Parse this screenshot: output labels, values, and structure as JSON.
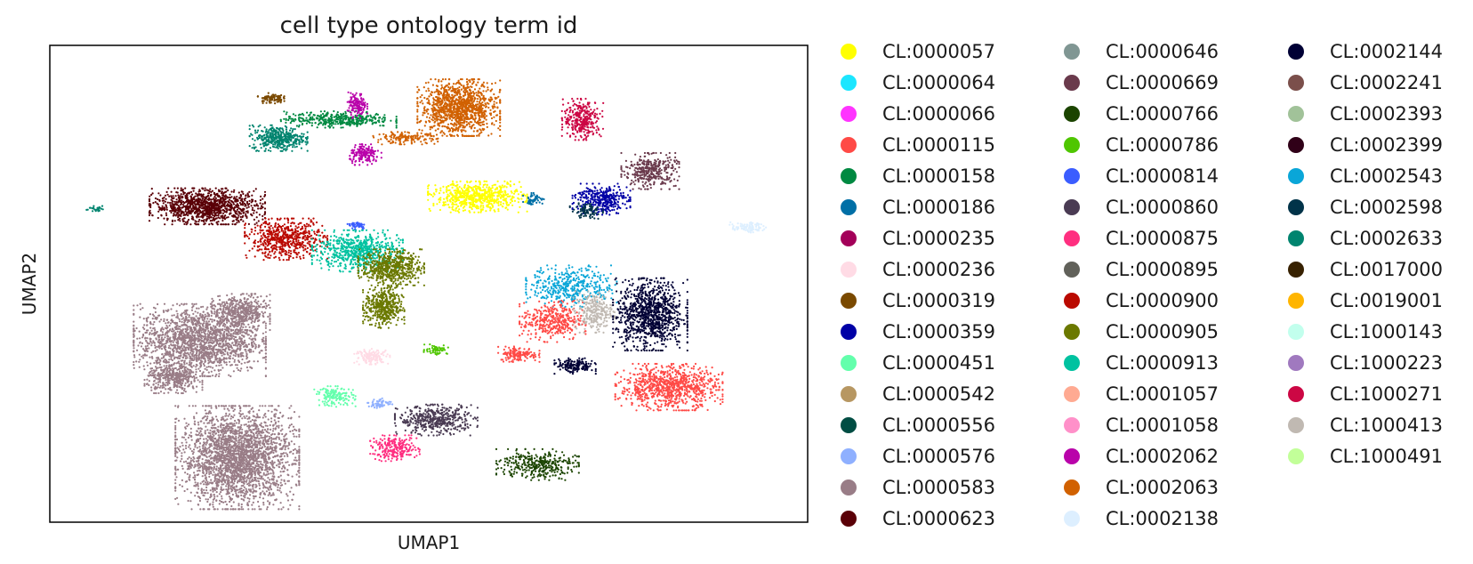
{
  "chart_data": {
    "type": "scatter",
    "title": "cell type ontology term id",
    "xlabel": "UMAP1",
    "ylabel": "UMAP2",
    "xlim": [
      0,
      100
    ],
    "ylim": [
      0,
      100
    ],
    "grid": false,
    "ticks": false,
    "legend_position": "right",
    "legend_columns": 3,
    "categories": [
      {
        "id": "CL:0000057",
        "color": "#ffff00"
      },
      {
        "id": "CL:0000064",
        "color": "#1ce6ff"
      },
      {
        "id": "CL:0000066",
        "color": "#ff34ff"
      },
      {
        "id": "CL:0000115",
        "color": "#ff4a46"
      },
      {
        "id": "CL:0000158",
        "color": "#008941"
      },
      {
        "id": "CL:0000186",
        "color": "#006fa6"
      },
      {
        "id": "CL:0000235",
        "color": "#a30059"
      },
      {
        "id": "CL:0000236",
        "color": "#ffdbe5"
      },
      {
        "id": "CL:0000319",
        "color": "#7a4900"
      },
      {
        "id": "CL:0000359",
        "color": "#0000a6"
      },
      {
        "id": "CL:0000451",
        "color": "#63ffac"
      },
      {
        "id": "CL:0000542",
        "color": "#b79762"
      },
      {
        "id": "CL:0000556",
        "color": "#004d43"
      },
      {
        "id": "CL:0000576",
        "color": "#8fb0ff"
      },
      {
        "id": "CL:0000583",
        "color": "#997d87"
      },
      {
        "id": "CL:0000623",
        "color": "#5a0007"
      },
      {
        "id": "CL:0000646",
        "color": "#809693"
      },
      {
        "id": "CL:0000669",
        "color": "#6a3a4c"
      },
      {
        "id": "CL:0000766",
        "color": "#1b4400"
      },
      {
        "id": "CL:0000786",
        "color": "#4fc601"
      },
      {
        "id": "CL:0000814",
        "color": "#3b5dff"
      },
      {
        "id": "CL:0000860",
        "color": "#4a3b53"
      },
      {
        "id": "CL:0000875",
        "color": "#ff2f80"
      },
      {
        "id": "CL:0000895",
        "color": "#61615a"
      },
      {
        "id": "CL:0000900",
        "color": "#ba0900"
      },
      {
        "id": "CL:0000905",
        "color": "#6b7900"
      },
      {
        "id": "CL:0000913",
        "color": "#00c2a0"
      },
      {
        "id": "CL:0001057",
        "color": "#ffaa92"
      },
      {
        "id": "CL:0001058",
        "color": "#ff90c9"
      },
      {
        "id": "CL:0002062",
        "color": "#b903aa"
      },
      {
        "id": "CL:0002063",
        "color": "#d16100"
      },
      {
        "id": "CL:0002138",
        "color": "#ddefff"
      },
      {
        "id": "CL:0002144",
        "color": "#000035"
      },
      {
        "id": "CL:0002241",
        "color": "#7b4f4b"
      },
      {
        "id": "CL:0002393",
        "color": "#a1c299"
      },
      {
        "id": "CL:0002399",
        "color": "#300018"
      },
      {
        "id": "CL:0002543",
        "color": "#0aa6d8"
      },
      {
        "id": "CL:0002598",
        "color": "#013349"
      },
      {
        "id": "CL:0002633",
        "color": "#00846f"
      },
      {
        "id": "CL:0017000",
        "color": "#372101"
      },
      {
        "id": "CL:0019001",
        "color": "#ffb500"
      },
      {
        "id": "CL:1000143",
        "color": "#c2ffed"
      },
      {
        "id": "CL:1000223",
        "color": "#a079bf"
      },
      {
        "id": "CL:1000271",
        "color": "#cc0744"
      },
      {
        "id": "CL:1000413",
        "color": "#c0b9b2"
      },
      {
        "id": "CL:1000491",
        "color": "#c2ff99"
      }
    ],
    "clusters": [
      {
        "category": "CL:0000583",
        "x": 24.5,
        "y": 13,
        "rx": 7.5,
        "ry": 10,
        "n": 2600
      },
      {
        "category": "CL:0000583",
        "x": 19.5,
        "y": 38,
        "rx": 8,
        "ry": 7,
        "n": 1800
      },
      {
        "category": "CL:0000583",
        "x": 16,
        "y": 30,
        "rx": 3.5,
        "ry": 3,
        "n": 400
      },
      {
        "category": "CL:0000583",
        "x": 25,
        "y": 44,
        "rx": 3.5,
        "ry": 3.5,
        "n": 450
      },
      {
        "category": "CL:0000623",
        "x": 20.5,
        "y": 66.5,
        "rx": 7,
        "ry": 3.5,
        "n": 1100
      },
      {
        "category": "CL:0000900",
        "x": 31,
        "y": 59.5,
        "rx": 5,
        "ry": 4,
        "n": 600
      },
      {
        "category": "CL:0000913",
        "x": 40.5,
        "y": 57,
        "rx": 5.5,
        "ry": 4,
        "n": 650
      },
      {
        "category": "CL:0000905",
        "x": 45,
        "y": 53.5,
        "rx": 4,
        "ry": 3.5,
        "n": 600
      },
      {
        "category": "CL:0000905",
        "x": 44,
        "y": 45,
        "rx": 2.5,
        "ry": 4,
        "n": 450
      },
      {
        "category": "CL:0000814",
        "x": 40.5,
        "y": 62.5,
        "rx": 1.2,
        "ry": 0.8,
        "n": 50
      },
      {
        "category": "CL:0002633",
        "x": 30,
        "y": 81,
        "rx": 3.5,
        "ry": 2.5,
        "n": 400
      },
      {
        "category": "CL:0000158",
        "x": 38,
        "y": 85,
        "rx": 7,
        "ry": 1.6,
        "n": 400
      },
      {
        "category": "CL:0000319",
        "x": 29,
        "y": 89.5,
        "rx": 1.6,
        "ry": 1,
        "n": 90
      },
      {
        "category": "CL:0002062",
        "x": 40.5,
        "y": 88,
        "rx": 1.2,
        "ry": 2.5,
        "n": 140
      },
      {
        "category": "CL:0002062",
        "x": 41.5,
        "y": 77.5,
        "rx": 2,
        "ry": 2,
        "n": 170
      },
      {
        "category": "CL:0002063",
        "x": 54,
        "y": 87.5,
        "rx": 5,
        "ry": 5.5,
        "n": 1200
      },
      {
        "category": "CL:0002063",
        "x": 47,
        "y": 81,
        "rx": 4,
        "ry": 1.2,
        "n": 150
      },
      {
        "category": "CL:1000271",
        "x": 70.5,
        "y": 85,
        "rx": 2.5,
        "ry": 4,
        "n": 320
      },
      {
        "category": "CL:0000057",
        "x": 56.5,
        "y": 68.5,
        "rx": 6,
        "ry": 3,
        "n": 650
      },
      {
        "category": "CL:0000186",
        "x": 64,
        "y": 68,
        "rx": 1.3,
        "ry": 1.2,
        "n": 50
      },
      {
        "category": "CL:0000359",
        "x": 73,
        "y": 68,
        "rx": 3.5,
        "ry": 3,
        "n": 350
      },
      {
        "category": "CL:0000669",
        "x": 79.5,
        "y": 74,
        "rx": 3.5,
        "ry": 3.5,
        "n": 350
      },
      {
        "category": "CL:0002598",
        "x": 71,
        "y": 65.5,
        "rx": 2,
        "ry": 1.5,
        "n": 90
      },
      {
        "category": "CL:0002138",
        "x": 92.5,
        "y": 62,
        "rx": 2.2,
        "ry": 1,
        "n": 90
      },
      {
        "category": "CL:0002633",
        "x": 5.5,
        "y": 66,
        "rx": 1,
        "ry": 0.5,
        "n": 25
      },
      {
        "category": "CL:0002543",
        "x": 69,
        "y": 49.5,
        "rx": 5.5,
        "ry": 4,
        "n": 420
      },
      {
        "category": "CL:0000115",
        "x": 66.5,
        "y": 42,
        "rx": 4,
        "ry": 4,
        "n": 380
      },
      {
        "category": "CL:0000115",
        "x": 62,
        "y": 35,
        "rx": 2.5,
        "ry": 1.5,
        "n": 140
      },
      {
        "category": "CL:1000413",
        "x": 72,
        "y": 44,
        "rx": 2.5,
        "ry": 4,
        "n": 260
      },
      {
        "category": "CL:0002144",
        "x": 79.5,
        "y": 43.5,
        "rx": 4.5,
        "ry": 7,
        "n": 1000
      },
      {
        "category": "CL:0002144",
        "x": 69.5,
        "y": 32.5,
        "rx": 2.5,
        "ry": 1.5,
        "n": 160
      },
      {
        "category": "CL:0000115",
        "x": 82,
        "y": 28,
        "rx": 6.5,
        "ry": 4.5,
        "n": 900
      },
      {
        "category": "CL:0000236",
        "x": 42.5,
        "y": 34.5,
        "rx": 2.2,
        "ry": 1.5,
        "n": 140
      },
      {
        "category": "CL:0000786",
        "x": 51,
        "y": 36,
        "rx": 1.5,
        "ry": 1,
        "n": 60
      },
      {
        "category": "CL:0000860",
        "x": 51,
        "y": 21,
        "rx": 5,
        "ry": 3,
        "n": 450
      },
      {
        "category": "CL:0000451",
        "x": 37.5,
        "y": 26,
        "rx": 2.5,
        "ry": 2,
        "n": 150
      },
      {
        "category": "CL:0000576",
        "x": 43.5,
        "y": 24.5,
        "rx": 1.5,
        "ry": 1,
        "n": 60
      },
      {
        "category": "CL:0000875",
        "x": 45.5,
        "y": 15,
        "rx": 3,
        "ry": 2.5,
        "n": 250
      },
      {
        "category": "CL:0000766",
        "x": 64.5,
        "y": 11.5,
        "rx": 5,
        "ry": 3,
        "n": 350
      }
    ]
  }
}
